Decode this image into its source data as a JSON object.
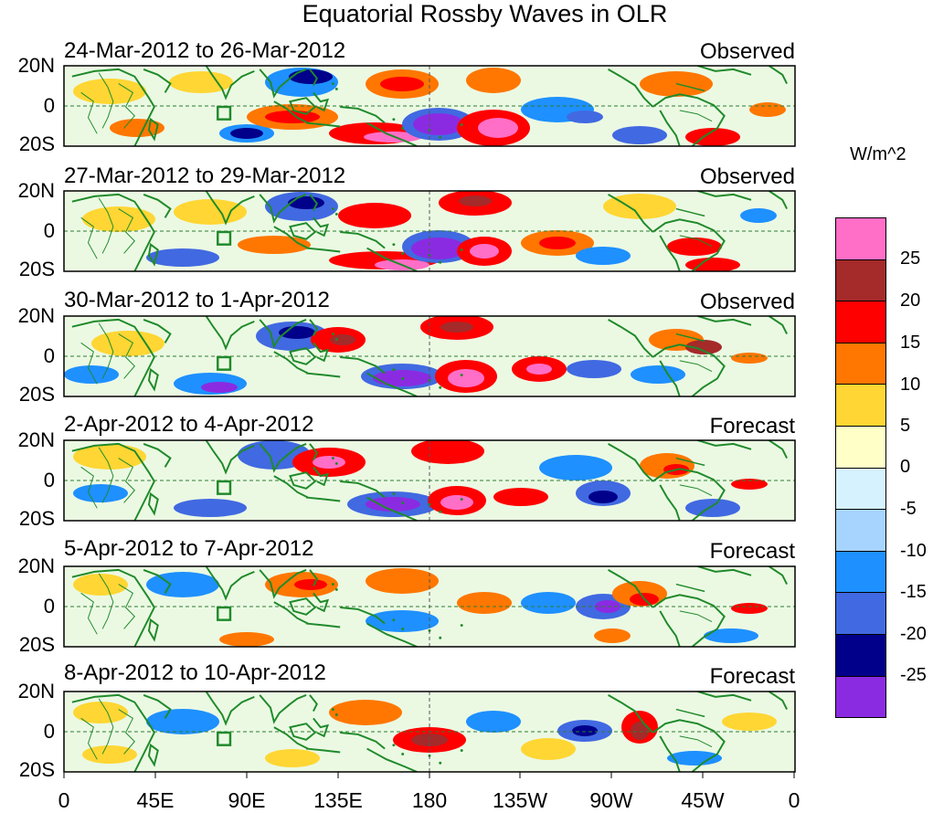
{
  "title": "Equatorial Rossby Waves in OLR",
  "units": "W/m^2",
  "panels": [
    {
      "date_range": "24-Mar-2012 to 26-Mar-2012",
      "status": "Observed"
    },
    {
      "date_range": "27-Mar-2012 to 29-Mar-2012",
      "status": "Observed"
    },
    {
      "date_range": "30-Mar-2012 to 1-Apr-2012",
      "status": "Observed"
    },
    {
      "date_range": "2-Apr-2012 to 4-Apr-2012",
      "status": "Forecast"
    },
    {
      "date_range": "5-Apr-2012 to 7-Apr-2012",
      "status": "Forecast"
    },
    {
      "date_range": "8-Apr-2012 to 10-Apr-2012",
      "status": "Forecast"
    }
  ],
  "lat_labels": [
    "20N",
    "0",
    "20S"
  ],
  "lon_labels": [
    "0",
    "45E",
    "90E",
    "135E",
    "180",
    "135W",
    "90W",
    "45W",
    "0"
  ],
  "colorbar": {
    "labels": [
      "25",
      "20",
      "15",
      "10",
      "5",
      "0",
      "-5",
      "-10",
      "-15",
      "-20",
      "-25"
    ],
    "colors": [
      "#ff6ec7",
      "#a52a2a",
      "#ff0000",
      "#ff7700",
      "#ffd633",
      "#ffffc8",
      "#d6f2ff",
      "#a6d4ff",
      "#1e90ff",
      "#4169e1",
      "#00008b",
      "#8a2be2"
    ]
  },
  "colors": {
    "coast": "#1f8a2a",
    "guide": "#2e7d32"
  },
  "map_features": {
    "box_marker": "green square near 80E on equator"
  }
}
